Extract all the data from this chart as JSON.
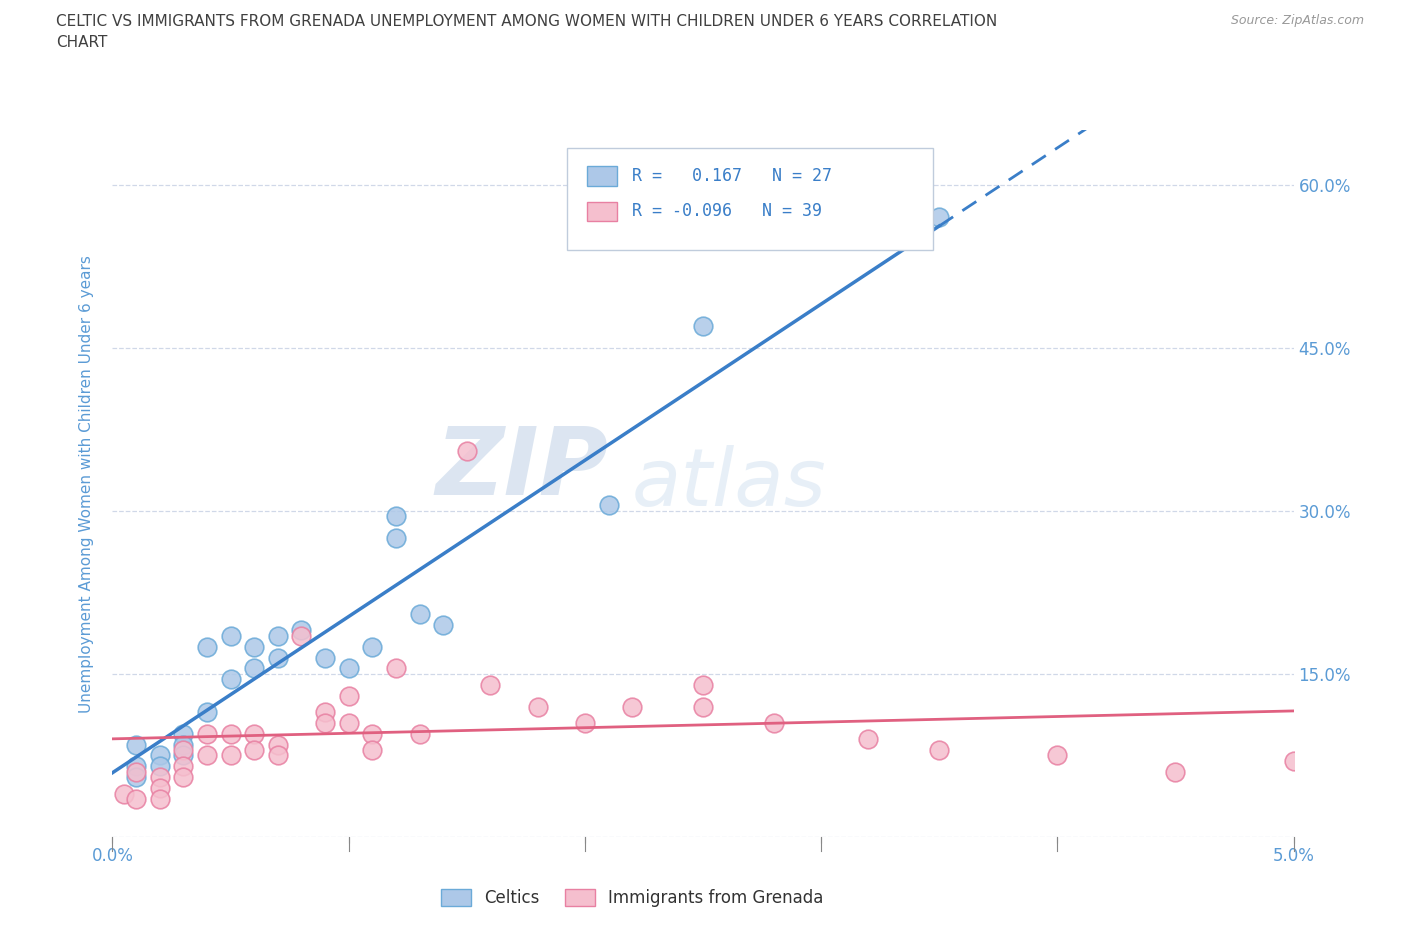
{
  "title_line1": "CELTIC VS IMMIGRANTS FROM GRENADA UNEMPLOYMENT AMONG WOMEN WITH CHILDREN UNDER 6 YEARS CORRELATION",
  "title_line2": "CHART",
  "source": "Source: ZipAtlas.com",
  "ylabel": "Unemployment Among Women with Children Under 6 years",
  "watermark": "ZIPatlas",
  "xlim": [
    0.0,
    0.05
  ],
  "ylim": [
    -0.02,
    0.65
  ],
  "plot_ylim": [
    0.0,
    0.65
  ],
  "xticks": [
    0.0,
    0.01,
    0.02,
    0.03,
    0.04,
    0.05
  ],
  "xtick_labels": [
    "0.0%",
    "",
    "",
    "",
    "",
    "5.0%"
  ],
  "yticks": [
    0.0,
    0.15,
    0.3,
    0.45,
    0.6
  ],
  "ytick_labels_right": [
    "",
    "15.0%",
    "30.0%",
    "45.0%",
    "60.0%"
  ],
  "celtic_color": "#adc8e8",
  "celtic_edge": "#6baad8",
  "grenada_color": "#f5bfce",
  "grenada_edge": "#e880a2",
  "celtic_R": 0.167,
  "celtic_N": 27,
  "grenada_R": -0.096,
  "grenada_N": 39,
  "celtic_line_color": "#3a7ec8",
  "grenada_line_color": "#e06080",
  "celtic_scatter_x": [
    0.001,
    0.001,
    0.001,
    0.002,
    0.002,
    0.003,
    0.003,
    0.003,
    0.004,
    0.004,
    0.005,
    0.005,
    0.006,
    0.006,
    0.007,
    0.007,
    0.008,
    0.009,
    0.01,
    0.011,
    0.012,
    0.012,
    0.013,
    0.014,
    0.021,
    0.025,
    0.035
  ],
  "celtic_scatter_y": [
    0.085,
    0.065,
    0.055,
    0.075,
    0.065,
    0.095,
    0.085,
    0.075,
    0.175,
    0.115,
    0.185,
    0.145,
    0.175,
    0.155,
    0.185,
    0.165,
    0.19,
    0.165,
    0.155,
    0.175,
    0.295,
    0.275,
    0.205,
    0.195,
    0.305,
    0.47,
    0.57
  ],
  "grenada_scatter_x": [
    0.0005,
    0.001,
    0.001,
    0.002,
    0.002,
    0.002,
    0.003,
    0.003,
    0.003,
    0.004,
    0.004,
    0.005,
    0.005,
    0.006,
    0.006,
    0.007,
    0.007,
    0.008,
    0.009,
    0.009,
    0.01,
    0.01,
    0.011,
    0.011,
    0.012,
    0.013,
    0.015,
    0.016,
    0.018,
    0.02,
    0.022,
    0.025,
    0.025,
    0.028,
    0.032,
    0.035,
    0.04,
    0.045,
    0.05
  ],
  "grenada_scatter_y": [
    0.04,
    0.06,
    0.035,
    0.055,
    0.045,
    0.035,
    0.08,
    0.065,
    0.055,
    0.095,
    0.075,
    0.095,
    0.075,
    0.095,
    0.08,
    0.085,
    0.075,
    0.185,
    0.115,
    0.105,
    0.13,
    0.105,
    0.095,
    0.08,
    0.155,
    0.095,
    0.355,
    0.14,
    0.12,
    0.105,
    0.12,
    0.14,
    0.12,
    0.105,
    0.09,
    0.08,
    0.075,
    0.06,
    0.07
  ],
  "background_color": "#ffffff",
  "grid_color": "#d0d8e8",
  "title_color": "#404040",
  "axis_label_color": "#5b9bd5",
  "tick_label_color": "#5b9bd5",
  "legend_box_color": "#f0f4f8",
  "legend_border_color": "#c8d4e0"
}
